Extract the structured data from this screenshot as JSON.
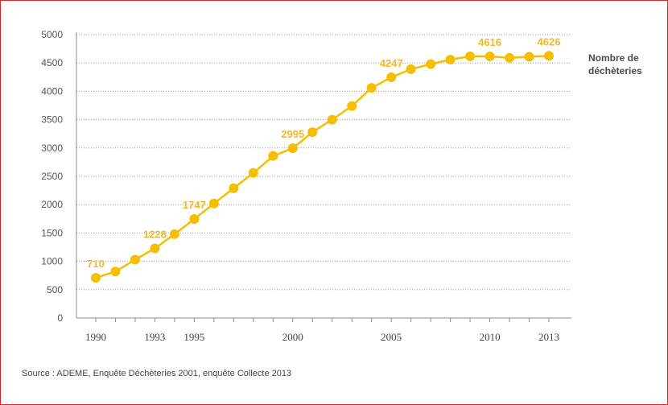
{
  "chart_data": {
    "type": "line",
    "x": [
      1990,
      1991,
      1992,
      1993,
      1994,
      1995,
      1996,
      1997,
      1998,
      1999,
      2000,
      2001,
      2002,
      2003,
      2004,
      2005,
      2006,
      2007,
      2008,
      2009,
      2010,
      2011,
      2012,
      2013
    ],
    "series": [
      {
        "name": "Nombre de déchèteries",
        "values": [
          710,
          820,
          1030,
          1228,
          1480,
          1747,
          2020,
          2290,
          2560,
          2860,
          2995,
          3280,
          3500,
          3740,
          4060,
          4247,
          4390,
          4480,
          4560,
          4616,
          4616,
          4590,
          4610,
          4626
        ]
      }
    ],
    "data_labels": [
      {
        "x": 1990,
        "text": "710"
      },
      {
        "x": 1993,
        "text": "1228"
      },
      {
        "x": 1995,
        "text": "1747"
      },
      {
        "x": 2000,
        "text": "2995"
      },
      {
        "x": 2005,
        "text": "4247"
      },
      {
        "x": 2010,
        "text": "4616"
      },
      {
        "x": 2013,
        "text": "4626"
      }
    ],
    "xticks": [
      "1990",
      "1993",
      "1995",
      "2000",
      "2005",
      "2010",
      "2013"
    ],
    "yticks": [
      "0",
      "500",
      "1000",
      "1500",
      "2000",
      "2500",
      "3000",
      "3500",
      "4000",
      "4500",
      "5000"
    ],
    "ylim": [
      0,
      5000
    ],
    "xlim": [
      1990,
      2013
    ],
    "grid": "horizontal-dotted",
    "legend_position": "right",
    "legend_lines": [
      "Nombre de",
      "déchèteries"
    ],
    "line_color": "#f6be00"
  },
  "source": "Source : ADEME, Enquête Déchèteries 2001, enquête Collecte 2013"
}
